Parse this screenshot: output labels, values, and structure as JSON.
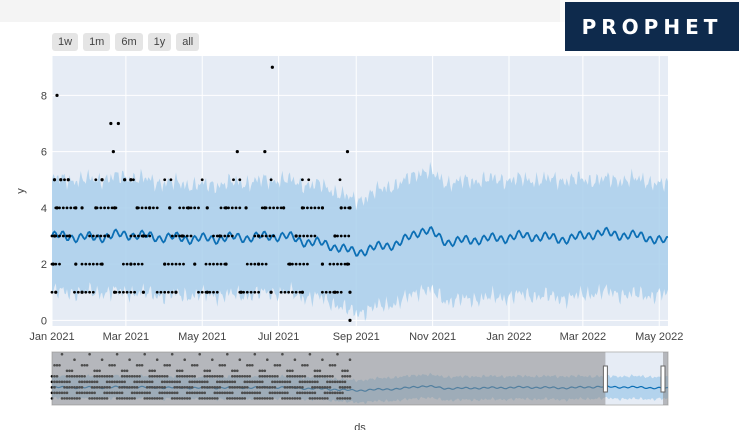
{
  "logo": {
    "text": "PROPHET"
  },
  "range_selector": [
    "1w",
    "1m",
    "6m",
    "1y",
    "all"
  ],
  "colors": {
    "plot_bg": "#e6ecf5",
    "band": "#a9cfeb",
    "trend": "#0c6fb5",
    "points": "#000000",
    "slider_mask": "#8c8c8c",
    "logo_bg": "#0e2a4c"
  },
  "chart_data": {
    "type": "line",
    "title": "",
    "xlabel": "ds",
    "ylabel": "y",
    "ylim": [
      -0.2,
      9.4
    ],
    "yticks": [
      0,
      2,
      4,
      6,
      8
    ],
    "xlim": [
      "2021-01-01",
      "2022-05-08"
    ],
    "xticks": [
      {
        "date": "2021-01-01",
        "label": "Jan 2021"
      },
      {
        "date": "2021-03-01",
        "label": "Mar 2021"
      },
      {
        "date": "2021-05-01",
        "label": "May 2021"
      },
      {
        "date": "2021-07-01",
        "label": "Jul 2021"
      },
      {
        "date": "2021-09-01",
        "label": "Sep 2021"
      },
      {
        "date": "2021-11-01",
        "label": "Nov 2021"
      },
      {
        "date": "2022-01-01",
        "label": "Jan 2022"
      },
      {
        "date": "2022-03-01",
        "label": "Mar 2022"
      },
      {
        "date": "2022-05-01",
        "label": "May 2022"
      }
    ],
    "observed_end": "2021-08-27",
    "grid": true,
    "series": [
      {
        "kind": "forecast",
        "x": [
          "2021-01-01",
          "2021-02-01",
          "2021-03-01",
          "2021-04-01",
          "2021-05-01",
          "2021-06-01",
          "2021-07-01",
          "2021-08-01",
          "2021-09-01",
          "2021-10-01",
          "2021-10-25",
          "2021-11-15",
          "2021-12-15",
          "2022-01-15",
          "2022-02-15",
          "2022-03-15",
          "2022-04-15",
          "2022-05-08"
        ],
        "yhat": [
          3.0,
          2.95,
          3.05,
          2.95,
          2.9,
          2.95,
          3.0,
          2.75,
          2.45,
          2.7,
          3.2,
          2.8,
          2.9,
          3.0,
          2.9,
          3.1,
          3.0,
          2.8
        ],
        "upper": [
          5.0,
          5.0,
          5.1,
          4.9,
          4.8,
          4.9,
          5.0,
          4.8,
          4.3,
          4.8,
          5.3,
          4.9,
          5.0,
          5.0,
          5.0,
          5.0,
          5.0,
          4.8
        ],
        "lower": [
          1.0,
          1.0,
          1.0,
          0.9,
          0.9,
          0.9,
          1.0,
          0.8,
          0.3,
          0.6,
          1.1,
          0.7,
          0.8,
          0.9,
          0.8,
          1.0,
          0.9,
          0.9
        ]
      },
      {
        "kind": "observed",
        "points": [
          [
            "2021-01-05",
            8
          ],
          [
            "2021-01-03",
            5
          ],
          [
            "2021-01-08",
            5
          ],
          [
            "2021-01-14",
            5
          ],
          [
            "2021-02-10",
            5
          ],
          [
            "2021-02-28",
            5
          ],
          [
            "2021-03-05",
            5
          ],
          [
            "2021-02-17",
            7
          ],
          [
            "2021-02-23",
            7
          ],
          [
            "2021-02-19",
            6
          ],
          [
            "2021-05-29",
            6
          ],
          [
            "2021-06-20",
            6
          ],
          [
            "2021-06-26",
            9
          ],
          [
            "2021-08-25",
            6
          ],
          [
            "2021-01-05",
            4
          ],
          [
            "2021-01-20",
            4
          ],
          [
            "2021-01-25",
            4
          ],
          [
            "2021-02-05",
            4
          ],
          [
            "2021-02-20",
            4
          ],
          [
            "2021-03-10",
            4
          ],
          [
            "2021-03-20",
            4
          ],
          [
            "2021-04-05",
            4
          ],
          [
            "2021-04-20",
            4
          ],
          [
            "2021-05-05",
            4
          ],
          [
            "2021-05-20",
            4
          ],
          [
            "2021-06-05",
            4
          ],
          [
            "2021-06-20",
            4
          ],
          [
            "2021-07-05",
            4
          ],
          [
            "2021-07-20",
            4
          ],
          [
            "2021-08-05",
            4
          ],
          [
            "2021-08-20",
            4
          ],
          [
            "2021-08-27",
            4
          ],
          [
            "2021-01-03",
            3
          ],
          [
            "2021-01-15",
            3
          ],
          [
            "2021-02-15",
            3
          ],
          [
            "2021-03-15",
            3
          ],
          [
            "2021-04-15",
            3
          ],
          [
            "2021-05-15",
            3
          ],
          [
            "2021-06-15",
            3
          ],
          [
            "2021-07-15",
            3
          ],
          [
            "2021-08-15",
            3
          ],
          [
            "2021-01-02",
            2
          ],
          [
            "2021-01-20",
            2
          ],
          [
            "2021-02-10",
            2
          ],
          [
            "2021-03-05",
            2
          ],
          [
            "2021-04-01",
            2
          ],
          [
            "2021-04-25",
            2
          ],
          [
            "2021-05-20",
            2
          ],
          [
            "2021-06-15",
            2
          ],
          [
            "2021-07-10",
            2
          ],
          [
            "2021-08-05",
            2
          ],
          [
            "2021-08-25",
            2
          ],
          [
            "2021-01-04",
            1
          ],
          [
            "2021-01-25",
            1
          ],
          [
            "2021-02-20",
            1
          ],
          [
            "2021-03-15",
            1
          ],
          [
            "2021-04-10",
            1
          ],
          [
            "2021-05-05",
            1
          ],
          [
            "2021-06-01",
            1
          ],
          [
            "2021-06-25",
            1
          ],
          [
            "2021-07-20",
            1
          ],
          [
            "2021-08-15",
            1
          ],
          [
            "2021-08-27",
            1
          ],
          [
            "2021-08-27",
            0
          ]
        ]
      }
    ],
    "range_slider": {
      "window_start": "2022-03-19",
      "window_end": "2022-05-04"
    }
  }
}
